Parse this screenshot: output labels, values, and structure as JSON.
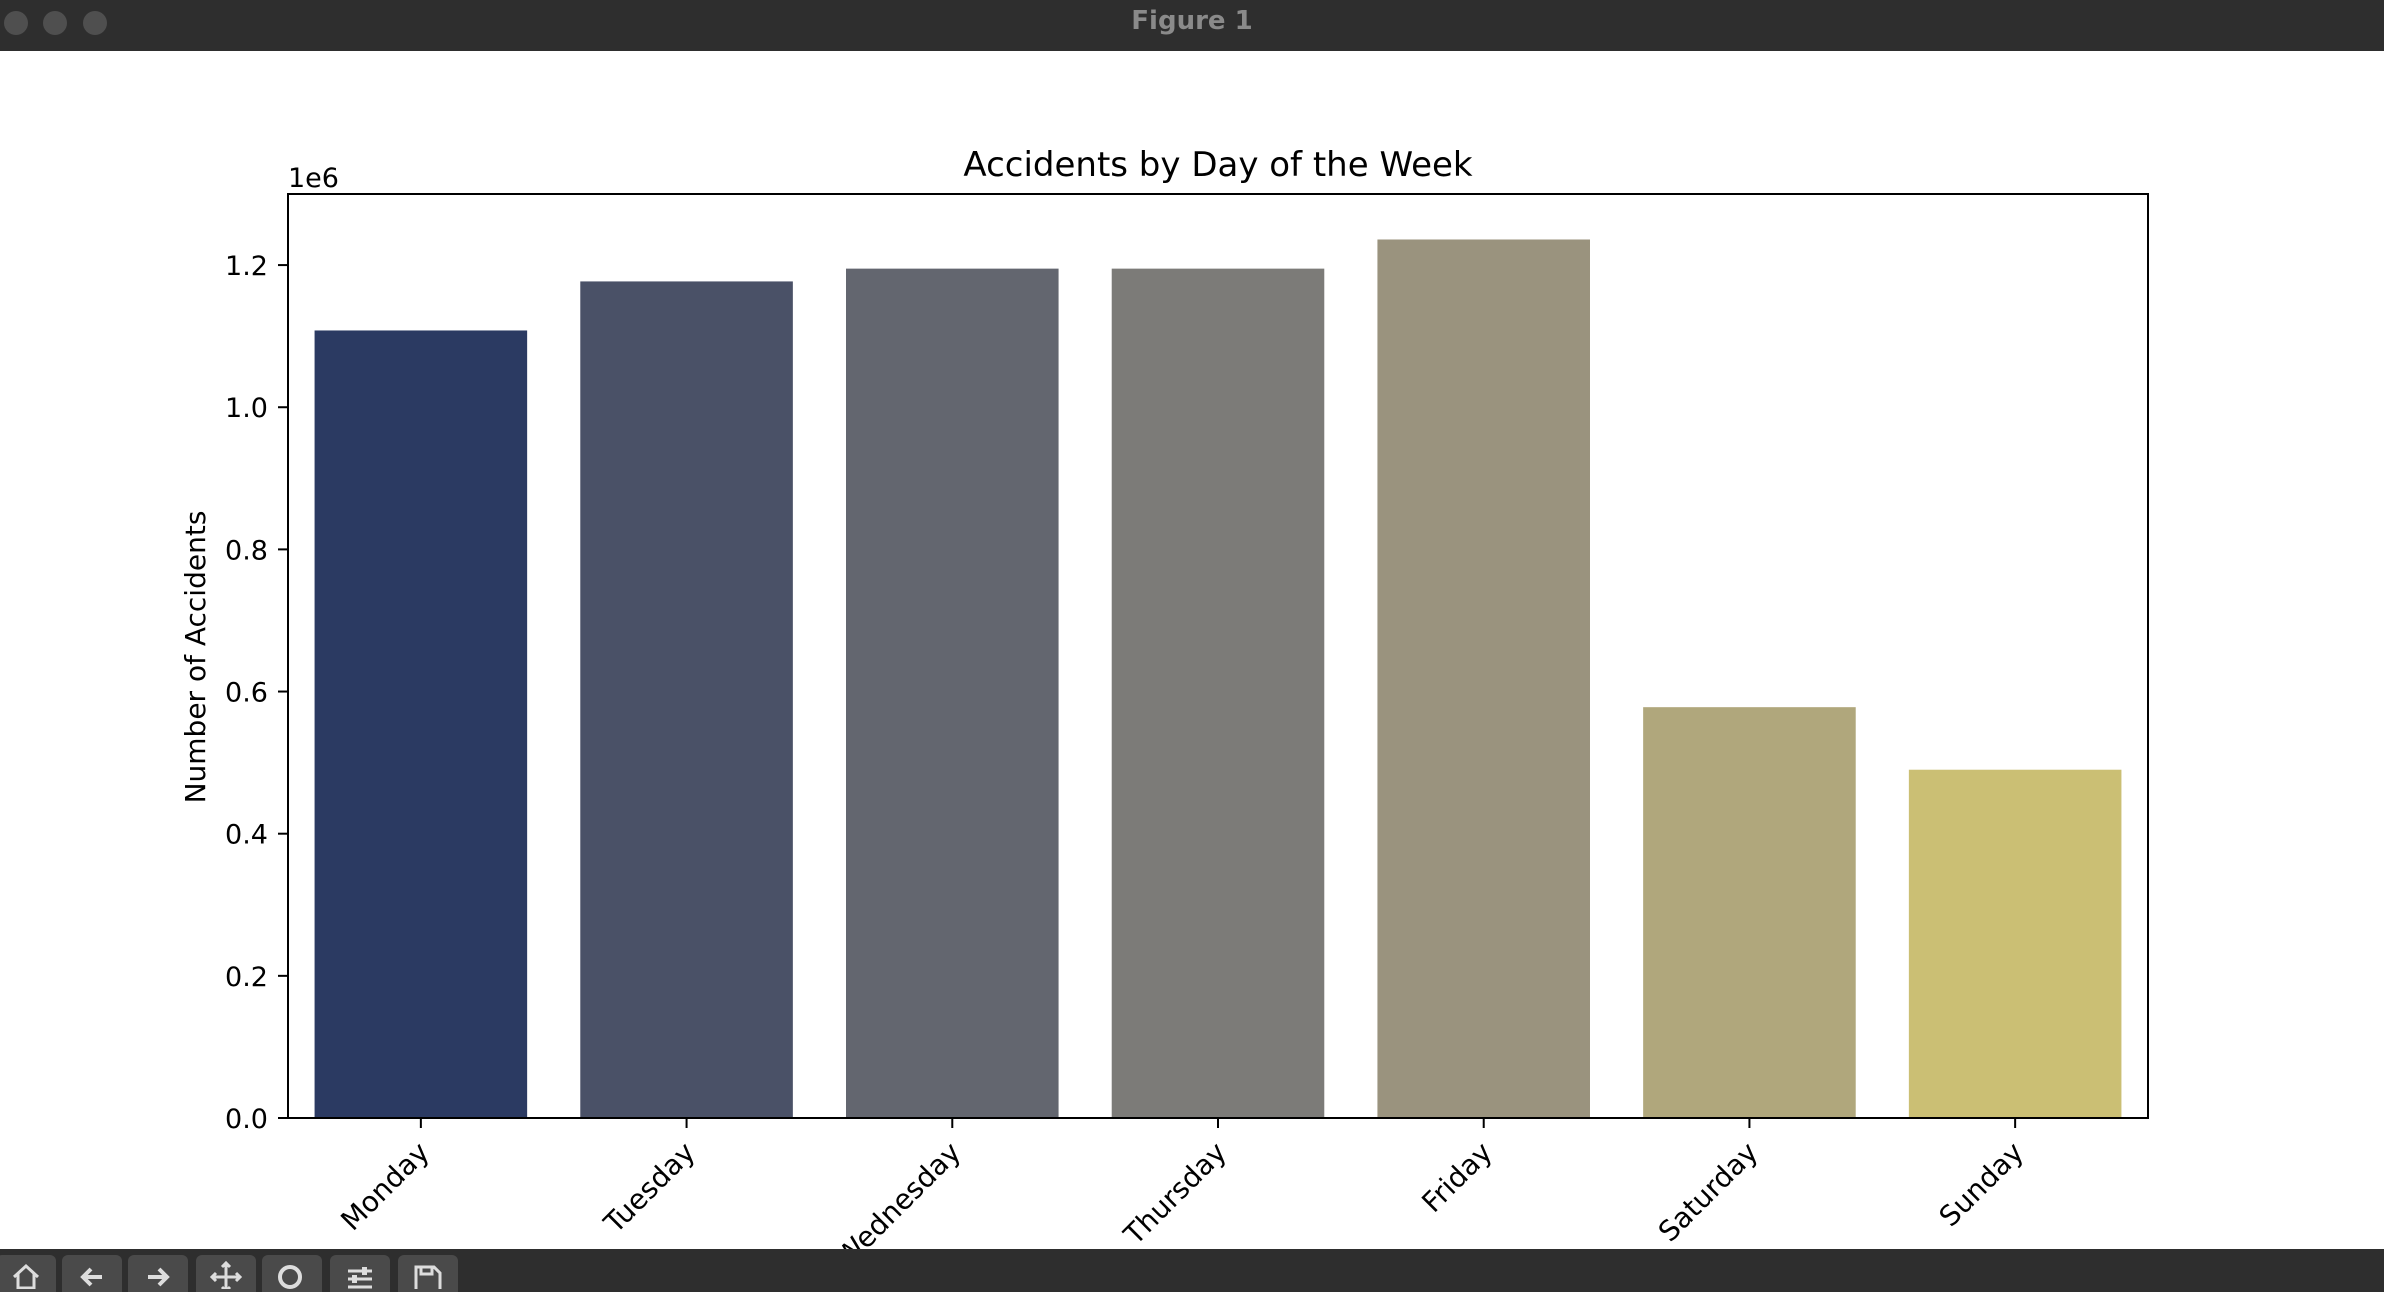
{
  "window": {
    "title": "Figure 1"
  },
  "toolbar": {
    "buttons": [
      {
        "icon": "home-icon"
      },
      {
        "icon": "back-arrow-icon"
      },
      {
        "icon": "forward-arrow-icon"
      },
      {
        "icon": "pan-move-icon"
      },
      {
        "icon": "zoom-magnifier-icon"
      },
      {
        "icon": "configure-subplots-icon"
      },
      {
        "icon": "save-disk-icon"
      }
    ]
  },
  "chart_data": {
    "type": "bar",
    "title": "Accidents by Day of the Week",
    "xlabel": "",
    "ylabel": "Number of Accidents",
    "offset_label": "1e6",
    "categories": [
      "Monday",
      "Tuesday",
      "Wednesday",
      "Thursday",
      "Friday",
      "Saturday",
      "Sunday"
    ],
    "values": [
      1108000,
      1177000,
      1195000,
      1195000,
      1236000,
      578000,
      490000
    ],
    "colors": [
      "#2b3a62",
      "#4a5167",
      "#63666f",
      "#7c7b78",
      "#9a937e",
      "#b0a77c",
      "#cbbf74"
    ],
    "ylim": [
      0,
      1300000
    ],
    "yticks": [
      {
        "value": 0,
        "label": "0.0"
      },
      {
        "value": 200000,
        "label": "0.2"
      },
      {
        "value": 400000,
        "label": "0.4"
      },
      {
        "value": 600000,
        "label": "0.6"
      },
      {
        "value": 800000,
        "label": "0.8"
      },
      {
        "value": 1000000,
        "label": "1.0"
      },
      {
        "value": 1200000,
        "label": "1.2"
      }
    ],
    "grid": false,
    "legend": "none"
  }
}
